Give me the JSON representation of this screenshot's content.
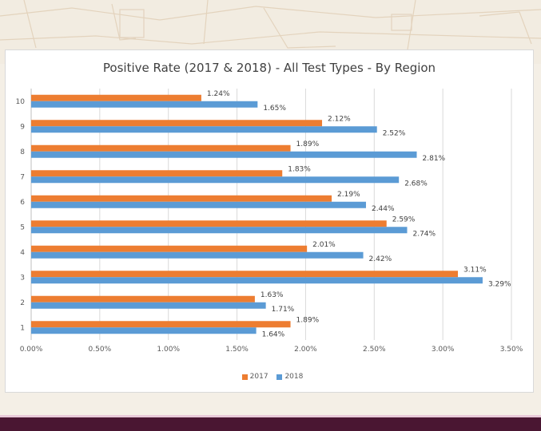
{
  "chart_data": {
    "type": "bar",
    "orientation": "horizontal",
    "title": "Positive Rate (2017 & 2018) - All Test Types - By Region",
    "categories": [
      "10",
      "9",
      "8",
      "7",
      "6",
      "5",
      "4",
      "3",
      "2",
      "1"
    ],
    "series": [
      {
        "name": "2017",
        "color": "#ed7d31",
        "values": [
          1.24,
          2.12,
          1.89,
          1.83,
          2.19,
          2.59,
          2.01,
          3.11,
          1.63,
          1.89
        ],
        "labels": [
          "1.24%",
          "2.12%",
          "1.89%",
          "1.83%",
          "2.19%",
          "2.59%",
          "2.01%",
          "3.11%",
          "1.63%",
          "1.89%"
        ]
      },
      {
        "name": "2018",
        "color": "#5b9bd5",
        "values": [
          1.65,
          2.52,
          2.81,
          2.68,
          2.44,
          2.74,
          2.42,
          3.29,
          1.71,
          1.64
        ],
        "labels": [
          "1.65%",
          "2.52%",
          "2.81%",
          "2.68%",
          "2.44%",
          "2.74%",
          "2.42%",
          "3.29%",
          "1.71%",
          "1.64%"
        ]
      }
    ],
    "xlim": [
      0,
      3.5
    ],
    "xticks": [
      "0.00%",
      "0.50%",
      "1.00%",
      "1.50%",
      "2.00%",
      "2.50%",
      "3.00%",
      "3.50%"
    ],
    "grid": true,
    "legend_position": "bottom"
  }
}
